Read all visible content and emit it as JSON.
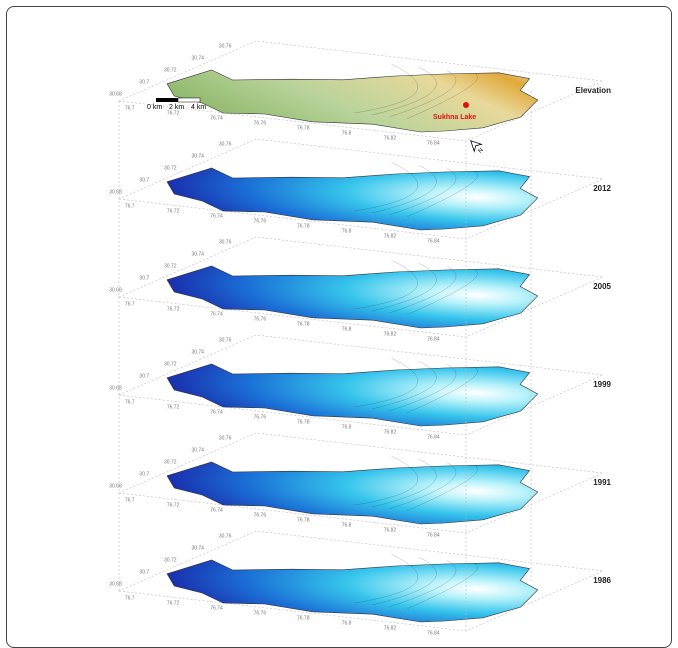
{
  "layers": [
    {
      "label": "Elevation"
    },
    {
      "label": "2012"
    },
    {
      "label": "2005"
    },
    {
      "label": "1999"
    },
    {
      "label": "1991"
    },
    {
      "label": "1986"
    }
  ],
  "scale_bar": {
    "labels": [
      "0 km",
      "2 km",
      "4 km"
    ]
  },
  "lake_label": "Sukhna Lake",
  "north_label": "N",
  "axis_labels": {
    "lat": [
      "30.68",
      "30.7",
      "30.72",
      "30.74",
      "30.76"
    ],
    "lon": [
      "76.7",
      "76.72",
      "76.74",
      "76.76",
      "76.78",
      "76.8",
      "76.82",
      "76.84"
    ]
  }
}
